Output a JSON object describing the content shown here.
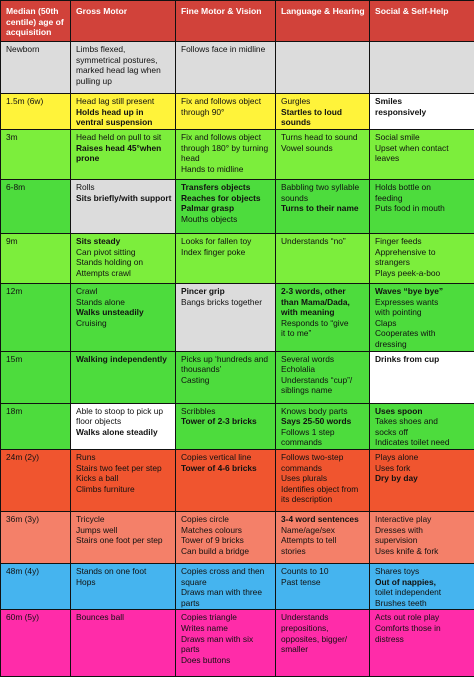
{
  "headers": [
    "Median (50th centile) age of acquisition",
    "Gross Motor",
    "Fine Motor & Vision",
    "Language & Hearing",
    "Social & Self-Help"
  ],
  "colors": {
    "header": "#d1423a",
    "grey": "#dcdcdc",
    "yellow": "#fff33a",
    "lightgreen": "#7cee3c",
    "green": "#4ddc3d",
    "red": "#f0552f",
    "salmon": "#f48069",
    "blue": "#45b4ef",
    "magenta": "#ff2ca9",
    "white": "#ffffff"
  },
  "rows": [
    {
      "age": "Newborn",
      "bg": "grey",
      "cells": [
        {
          "lines": [
            {
              "t": "Limbs flexed,"
            },
            {
              "t": "symmetrical postures,"
            },
            {
              "t": "marked head lag when"
            },
            {
              "t": "pulling up"
            }
          ]
        },
        {
          "lines": [
            {
              "t": "Follows face in midline"
            }
          ]
        },
        {
          "lines": []
        },
        {
          "lines": []
        }
      ]
    },
    {
      "age": "1.5m (6w)",
      "bg": "yellow",
      "cells": [
        {
          "lines": [
            {
              "t": "Head lag still present"
            },
            {
              "t": "Holds head up in",
              "b": true
            },
            {
              "t": "ventral suspension",
              "b": true
            }
          ]
        },
        {
          "lines": [
            {
              "t": "Fix and follows object"
            },
            {
              "t": "through 90°"
            }
          ]
        },
        {
          "lines": [
            {
              "t": "Gurgles"
            },
            {
              "t": "Startles to loud",
              "b": true
            },
            {
              "t": "sounds",
              "b": true
            }
          ]
        },
        {
          "bg": "white",
          "lines": [
            {
              "t": "Smiles",
              "b": true
            },
            {
              "t": "responsively",
              "b": true
            }
          ]
        }
      ]
    },
    {
      "age": "3m",
      "bg": "lightgreen",
      "cells": [
        {
          "lines": [
            {
              "t": "Head held on pull to sit"
            },
            {
              "t": "Raises head 45°when",
              "b": true
            },
            {
              "t": "prone",
              "b": true
            }
          ]
        },
        {
          "lines": [
            {
              "t": "Fix and follows object"
            },
            {
              "t": "through 180° by turning"
            },
            {
              "t": "head"
            },
            {
              "t": "Hands to midline"
            }
          ]
        },
        {
          "lines": [
            {
              "t": "Turns head to sound"
            },
            {
              "t": "Vowel sounds"
            }
          ]
        },
        {
          "lines": [
            {
              "t": "Social smile"
            },
            {
              "t": "Upset when contact"
            },
            {
              "t": "leaves"
            }
          ]
        }
      ]
    },
    {
      "age": "6-8m",
      "bg": "green",
      "cells": [
        {
          "bg": "grey",
          "lines": [
            {
              "t": "Rolls"
            },
            {
              "t": "Sits briefly/with support",
              "b": true
            }
          ]
        },
        {
          "lines": [
            {
              "t": "Transfers objects",
              "b": true
            },
            {
              "t": "Reaches for objects",
              "b": true
            },
            {
              "t": "Palmar grasp",
              "b": true
            },
            {
              "t": "Mouths objects"
            }
          ]
        },
        {
          "lines": [
            {
              "t": "Babbling two syllable"
            },
            {
              "t": "sounds"
            },
            {
              "t": "Turns to their name",
              "b": true
            }
          ]
        },
        {
          "lines": [
            {
              "t": "Holds bottle on"
            },
            {
              "t": "feeding"
            },
            {
              "t": "Puts food in mouth"
            }
          ]
        }
      ]
    },
    {
      "age": "9m",
      "bg": "lightgreen",
      "cells": [
        {
          "lines": [
            {
              "t": "Sits steady",
              "b": true
            },
            {
              "t": "Can pivot sitting"
            },
            {
              "t": "Stands holding on"
            },
            {
              "t": "Attempts crawl"
            }
          ]
        },
        {
          "lines": [
            {
              "t": "Looks for fallen toy"
            },
            {
              "t": "Index finger poke"
            }
          ]
        },
        {
          "lines": [
            {
              "t": "Understands “no”"
            }
          ]
        },
        {
          "lines": [
            {
              "t": "Finger feeds"
            },
            {
              "t": "Apprehensive to"
            },
            {
              "t": "strangers"
            },
            {
              "t": "Plays peek-a-boo"
            }
          ]
        }
      ]
    },
    {
      "age": "12m",
      "bg": "green",
      "cells": [
        {
          "lines": [
            {
              "t": "Crawl"
            },
            {
              "t": "Stands alone"
            },
            {
              "t": "Walks unsteadily",
              "b": true
            },
            {
              "t": "Cruising"
            }
          ]
        },
        {
          "bg": "grey",
          "lines": [
            {
              "t": "Pincer grip",
              "b": true
            },
            {
              "t": "Bangs bricks together"
            }
          ]
        },
        {
          "lines": [
            {
              "t": "2-3 words, other",
              "b": true
            },
            {
              "t": "than Mama/Dada,",
              "b": true
            },
            {
              "t": "with meaning",
              "b": true
            },
            {
              "t": "Responds to “give"
            },
            {
              "t": "it to me”"
            }
          ]
        },
        {
          "lines": [
            {
              "t": "Waves “bye bye”",
              "b": true
            },
            {
              "t": "Expresses wants"
            },
            {
              "t": "with pointing"
            },
            {
              "t": "Claps"
            },
            {
              "t": "Cooperates with"
            },
            {
              "t": "dressing"
            }
          ]
        }
      ]
    },
    {
      "age": "15m",
      "bg": "green",
      "cells": [
        {
          "lines": [
            {
              "t": "Walking independently",
              "b": true
            }
          ]
        },
        {
          "lines": [
            {
              "t": "Picks up ‘hundreds and"
            },
            {
              "t": "thousands’"
            },
            {
              "t": "Casting"
            }
          ]
        },
        {
          "lines": [
            {
              "t": "Several words"
            },
            {
              "t": "Echolalia"
            },
            {
              "t": "Understands “cup”/"
            },
            {
              "t": "siblings name"
            }
          ]
        },
        {
          "bg": "white",
          "lines": [
            {
              "t": "Drinks from cup",
              "b": true
            }
          ]
        }
      ]
    },
    {
      "age": "18m",
      "bg": "green",
      "cells": [
        {
          "bg": "white",
          "lines": [
            {
              "t": "Able to stoop to pick up"
            },
            {
              "t": "floor objects"
            },
            {
              "t": "Walks alone steadily",
              "b": true
            }
          ]
        },
        {
          "lines": [
            {
              "t": "Scribbles"
            },
            {
              "t": "Tower of 2-3 bricks",
              "b": true
            }
          ]
        },
        {
          "lines": [
            {
              "t": "Knows body parts"
            },
            {
              "t": "Says 25-50 words",
              "b": true
            },
            {
              "t": "Follows 1 step"
            },
            {
              "t": "commands"
            }
          ]
        },
        {
          "lines": [
            {
              "t": "Uses spoon",
              "b": true
            },
            {
              "t": "Takes shoes and"
            },
            {
              "t": "socks off"
            },
            {
              "t": "Indicates toilet need"
            }
          ]
        }
      ]
    },
    {
      "age": "24m (2y)",
      "bg": "red",
      "cells": [
        {
          "lines": [
            {
              "t": "Runs"
            },
            {
              "t": "Stairs two feet per step"
            },
            {
              "t": "Kicks a ball"
            },
            {
              "t": "Climbs furniture"
            }
          ]
        },
        {
          "lines": [
            {
              "t": "Copies vertical line"
            },
            {
              "t": "Tower of 4-6 bricks",
              "b": true
            }
          ]
        },
        {
          "lines": [
            {
              "t": "Follows two-step"
            },
            {
              "t": "commands"
            },
            {
              "t": "Uses plurals"
            },
            {
              "t": "Identifies object from"
            },
            {
              "t": "its description"
            }
          ]
        },
        {
          "lines": [
            {
              "t": "Plays alone"
            },
            {
              "t": "Uses fork"
            },
            {
              "t": "Dry by day",
              "b": true
            }
          ]
        }
      ]
    },
    {
      "age": "36m (3y)",
      "bg": "salmon",
      "cells": [
        {
          "lines": [
            {
              "t": "Tricycle"
            },
            {
              "t": "Jumps well"
            },
            {
              "t": "Stairs one foot per step"
            }
          ]
        },
        {
          "lines": [
            {
              "t": "Copies circle"
            },
            {
              "t": "Matches colours"
            },
            {
              "t": "Tower of 9 bricks"
            },
            {
              "t": "Can build a bridge"
            }
          ]
        },
        {
          "lines": [
            {
              "t": "3-4 word sentences",
              "b": true
            },
            {
              "t": "Name/age/sex"
            },
            {
              "t": "Attempts to tell"
            },
            {
              "t": "stories"
            }
          ]
        },
        {
          "lines": [
            {
              "t": "Interactive play"
            },
            {
              "t": "Dresses with"
            },
            {
              "t": "supervision"
            },
            {
              "t": "Uses knife & fork"
            }
          ]
        }
      ]
    },
    {
      "age": "48m (4y)",
      "bg": "blue",
      "cells": [
        {
          "lines": [
            {
              "t": "Stands on one foot"
            },
            {
              "t": "Hops"
            }
          ]
        },
        {
          "lines": [
            {
              "t": "Copies cross and then"
            },
            {
              "t": "square"
            },
            {
              "t": "Draws man with three"
            },
            {
              "t": "parts"
            }
          ]
        },
        {
          "lines": [
            {
              "t": "Counts to 10"
            },
            {
              "t": "Past tense"
            }
          ]
        },
        {
          "lines": [
            {
              "t": "Shares toys"
            },
            {
              "t": "Out of nappies,",
              "b": true
            },
            {
              "t": "toilet independent"
            },
            {
              "t": "Brushes teeth"
            }
          ]
        }
      ]
    },
    {
      "age": "60m (5y)",
      "bg": "magenta",
      "cells": [
        {
          "lines": [
            {
              "t": "Bounces ball"
            }
          ]
        },
        {
          "lines": [
            {
              "t": "Copies triangle"
            },
            {
              "t": "Writes name"
            },
            {
              "t": "Draws man with six"
            },
            {
              "t": "parts"
            },
            {
              "t": "Does buttons"
            }
          ]
        },
        {
          "lines": [
            {
              "t": "Understands"
            },
            {
              "t": "prepositions,"
            },
            {
              "t": "opposites, bigger/"
            },
            {
              "t": "smaller"
            }
          ]
        },
        {
          "lines": [
            {
              "t": "Acts out role play"
            },
            {
              "t": "Comforts those in"
            },
            {
              "t": "distress"
            }
          ]
        }
      ]
    }
  ]
}
